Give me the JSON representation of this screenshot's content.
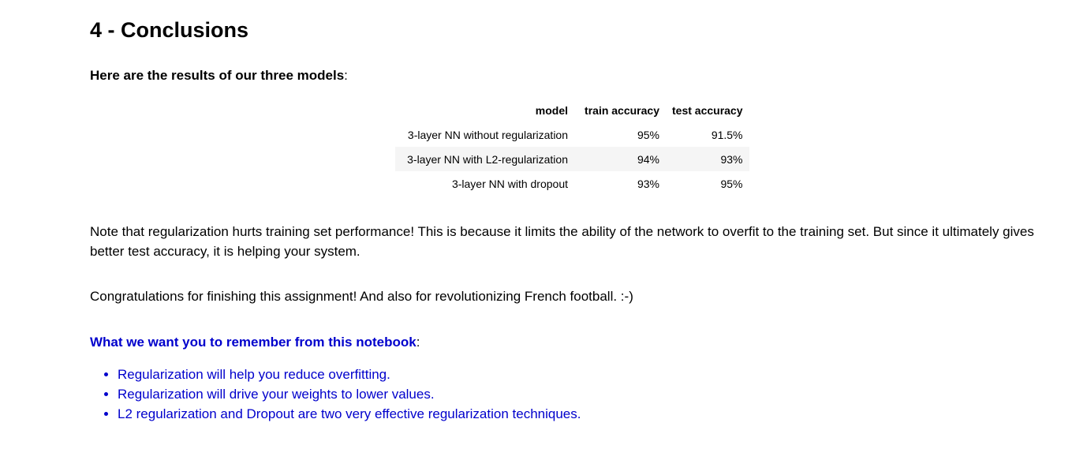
{
  "heading": "4 - Conclusions",
  "intro": {
    "bold": "Here are the results of our three models",
    "suffix": ":"
  },
  "table": {
    "headers": {
      "model": "model",
      "train": "train accuracy",
      "test": "test accuracy"
    },
    "rows": [
      {
        "model": "3-layer NN without regularization",
        "train": "95%",
        "test": "91.5%"
      },
      {
        "model": "3-layer NN with L2-regularization",
        "train": "94%",
        "test": "93%"
      },
      {
        "model": "3-layer NN with dropout",
        "train": "93%",
        "test": "95%"
      }
    ]
  },
  "note": "Note that regularization hurts training set performance! This is because it limits the ability of the network to overfit to the training set. But since it ultimately gives better test accuracy, it is helping your system.",
  "congrats": "Congratulations for finishing this assignment! And also for revolutionizing French football. :-)",
  "remember": {
    "bold": "What we want you to remember from this notebook",
    "suffix": ":"
  },
  "takeaways": [
    "Regularization will help you reduce overfitting.",
    "Regularization will drive your weights to lower values.",
    "L2 regularization and Dropout are two very effective regularization techniques."
  ],
  "colors": {
    "remember_text": "#0000cc",
    "table_stripe": "#f5f5f5"
  }
}
